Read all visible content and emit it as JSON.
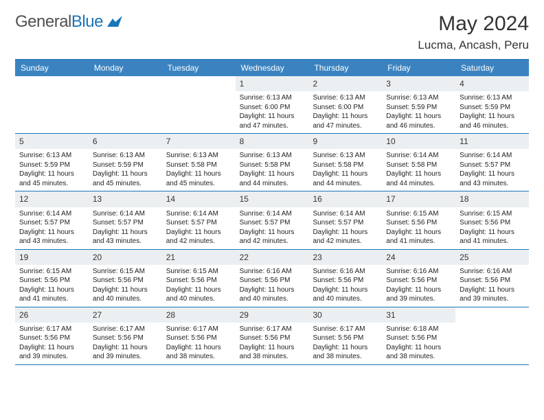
{
  "logo": {
    "text1": "General",
    "text2": "Blue"
  },
  "header": {
    "month": "May 2024",
    "location": "Lucma, Ancash, Peru"
  },
  "dow": [
    "Sunday",
    "Monday",
    "Tuesday",
    "Wednesday",
    "Thursday",
    "Friday",
    "Saturday"
  ],
  "colors": {
    "header_bg": "#3b83c0",
    "border": "#1976b8",
    "daynum_bg": "#eceff1",
    "text": "#222222"
  },
  "days": [
    {
      "n": 1,
      "sr": "6:13 AM",
      "ss": "6:00 PM",
      "dl": "11 hours and 47 minutes."
    },
    {
      "n": 2,
      "sr": "6:13 AM",
      "ss": "6:00 PM",
      "dl": "11 hours and 47 minutes."
    },
    {
      "n": 3,
      "sr": "6:13 AM",
      "ss": "5:59 PM",
      "dl": "11 hours and 46 minutes."
    },
    {
      "n": 4,
      "sr": "6:13 AM",
      "ss": "5:59 PM",
      "dl": "11 hours and 46 minutes."
    },
    {
      "n": 5,
      "sr": "6:13 AM",
      "ss": "5:59 PM",
      "dl": "11 hours and 45 minutes."
    },
    {
      "n": 6,
      "sr": "6:13 AM",
      "ss": "5:59 PM",
      "dl": "11 hours and 45 minutes."
    },
    {
      "n": 7,
      "sr": "6:13 AM",
      "ss": "5:58 PM",
      "dl": "11 hours and 45 minutes."
    },
    {
      "n": 8,
      "sr": "6:13 AM",
      "ss": "5:58 PM",
      "dl": "11 hours and 44 minutes."
    },
    {
      "n": 9,
      "sr": "6:13 AM",
      "ss": "5:58 PM",
      "dl": "11 hours and 44 minutes."
    },
    {
      "n": 10,
      "sr": "6:14 AM",
      "ss": "5:58 PM",
      "dl": "11 hours and 44 minutes."
    },
    {
      "n": 11,
      "sr": "6:14 AM",
      "ss": "5:57 PM",
      "dl": "11 hours and 43 minutes."
    },
    {
      "n": 12,
      "sr": "6:14 AM",
      "ss": "5:57 PM",
      "dl": "11 hours and 43 minutes."
    },
    {
      "n": 13,
      "sr": "6:14 AM",
      "ss": "5:57 PM",
      "dl": "11 hours and 43 minutes."
    },
    {
      "n": 14,
      "sr": "6:14 AM",
      "ss": "5:57 PM",
      "dl": "11 hours and 42 minutes."
    },
    {
      "n": 15,
      "sr": "6:14 AM",
      "ss": "5:57 PM",
      "dl": "11 hours and 42 minutes."
    },
    {
      "n": 16,
      "sr": "6:14 AM",
      "ss": "5:57 PM",
      "dl": "11 hours and 42 minutes."
    },
    {
      "n": 17,
      "sr": "6:15 AM",
      "ss": "5:56 PM",
      "dl": "11 hours and 41 minutes."
    },
    {
      "n": 18,
      "sr": "6:15 AM",
      "ss": "5:56 PM",
      "dl": "11 hours and 41 minutes."
    },
    {
      "n": 19,
      "sr": "6:15 AM",
      "ss": "5:56 PM",
      "dl": "11 hours and 41 minutes."
    },
    {
      "n": 20,
      "sr": "6:15 AM",
      "ss": "5:56 PM",
      "dl": "11 hours and 40 minutes."
    },
    {
      "n": 21,
      "sr": "6:15 AM",
      "ss": "5:56 PM",
      "dl": "11 hours and 40 minutes."
    },
    {
      "n": 22,
      "sr": "6:16 AM",
      "ss": "5:56 PM",
      "dl": "11 hours and 40 minutes."
    },
    {
      "n": 23,
      "sr": "6:16 AM",
      "ss": "5:56 PM",
      "dl": "11 hours and 40 minutes."
    },
    {
      "n": 24,
      "sr": "6:16 AM",
      "ss": "5:56 PM",
      "dl": "11 hours and 39 minutes."
    },
    {
      "n": 25,
      "sr": "6:16 AM",
      "ss": "5:56 PM",
      "dl": "11 hours and 39 minutes."
    },
    {
      "n": 26,
      "sr": "6:17 AM",
      "ss": "5:56 PM",
      "dl": "11 hours and 39 minutes."
    },
    {
      "n": 27,
      "sr": "6:17 AM",
      "ss": "5:56 PM",
      "dl": "11 hours and 39 minutes."
    },
    {
      "n": 28,
      "sr": "6:17 AM",
      "ss": "5:56 PM",
      "dl": "11 hours and 38 minutes."
    },
    {
      "n": 29,
      "sr": "6:17 AM",
      "ss": "5:56 PM",
      "dl": "11 hours and 38 minutes."
    },
    {
      "n": 30,
      "sr": "6:17 AM",
      "ss": "5:56 PM",
      "dl": "11 hours and 38 minutes."
    },
    {
      "n": 31,
      "sr": "6:18 AM",
      "ss": "5:56 PM",
      "dl": "11 hours and 38 minutes."
    }
  ],
  "labels": {
    "sunrise": "Sunrise:",
    "sunset": "Sunset:",
    "daylight": "Daylight:"
  },
  "layout": {
    "first_weekday": 3,
    "total_days": 31,
    "weeks": 5
  }
}
